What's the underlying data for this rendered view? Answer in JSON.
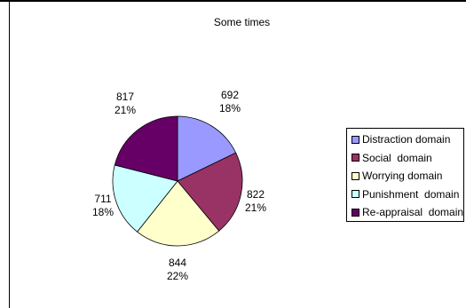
{
  "chart_data": {
    "type": "pie",
    "title": "Some times",
    "categories": [
      "Distraction domain",
      "Social  domain",
      "Worrying domain",
      "Punishment  domain",
      "Re-appraisal  domain"
    ],
    "values": [
      692,
      822,
      844,
      711,
      817
    ],
    "percent_labels": [
      "18%",
      "21%",
      "22%",
      "18%",
      "21%"
    ],
    "value_labels": [
      "692",
      "822",
      "844",
      "711",
      "817"
    ],
    "colors": [
      "#9999ff",
      "#993366",
      "#ffffcc",
      "#ccffff",
      "#660066"
    ],
    "legend_position": "right"
  }
}
